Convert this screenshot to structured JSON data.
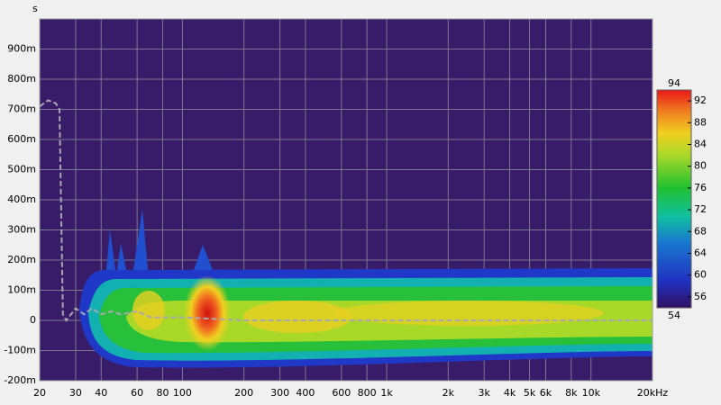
{
  "chart_data": {
    "type": "spectrogram",
    "y_label": "s",
    "xscale": "log",
    "grid": true,
    "background": "#381c6a",
    "xlim": [
      20,
      20000
    ],
    "xticks": [
      20,
      30,
      40,
      60,
      80,
      100,
      200,
      300,
      400,
      600,
      800,
      {
        "value": 1000,
        "label": "1k"
      },
      {
        "value": 2000,
        "label": "2k"
      },
      {
        "value": 3000,
        "label": "3k"
      },
      {
        "value": 4000,
        "label": "4k"
      },
      {
        "value": 5000,
        "label": "5k"
      },
      {
        "value": 6000,
        "label": "6k"
      },
      {
        "value": 8000,
        "label": "8k"
      },
      {
        "value": 10000,
        "label": "10k"
      },
      {
        "value": 20000,
        "label": "20kHz"
      }
    ],
    "ylim": [
      -0.2,
      1.0
    ],
    "yticks": [
      {
        "value": -0.2,
        "label": "-200m"
      },
      {
        "value": -0.1,
        "label": "-100m"
      },
      0,
      {
        "value": 0.1,
        "label": "100m"
      },
      {
        "value": 0.2,
        "label": "200m"
      },
      {
        "value": 0.3,
        "label": "300m"
      },
      {
        "value": 0.4,
        "label": "400m"
      },
      {
        "value": 0.5,
        "label": "500m"
      },
      {
        "value": 0.6,
        "label": "600m"
      },
      {
        "value": 0.7,
        "label": "700m"
      },
      {
        "value": 0.8,
        "label": "800m"
      },
      {
        "value": 0.9,
        "label": "900m"
      }
    ],
    "line": {
      "color": "#a8a8b0",
      "x": [
        20,
        22,
        24,
        25,
        26,
        27,
        30,
        33,
        36,
        40,
        45,
        50,
        60,
        70,
        100,
        200,
        1000,
        20000
      ],
      "values": [
        0.71,
        0.73,
        0.72,
        0.7,
        0.02,
        0.0,
        0.04,
        0.02,
        0.04,
        0.02,
        0.03,
        0.02,
        0.03,
        0.01,
        0.01,
        0.0,
        0.0,
        0.0
      ]
    },
    "colorbar": {
      "lim": [
        54,
        94
      ],
      "ticks": [
        56,
        60,
        64,
        68,
        72,
        76,
        80,
        84,
        88,
        92
      ]
    }
  }
}
